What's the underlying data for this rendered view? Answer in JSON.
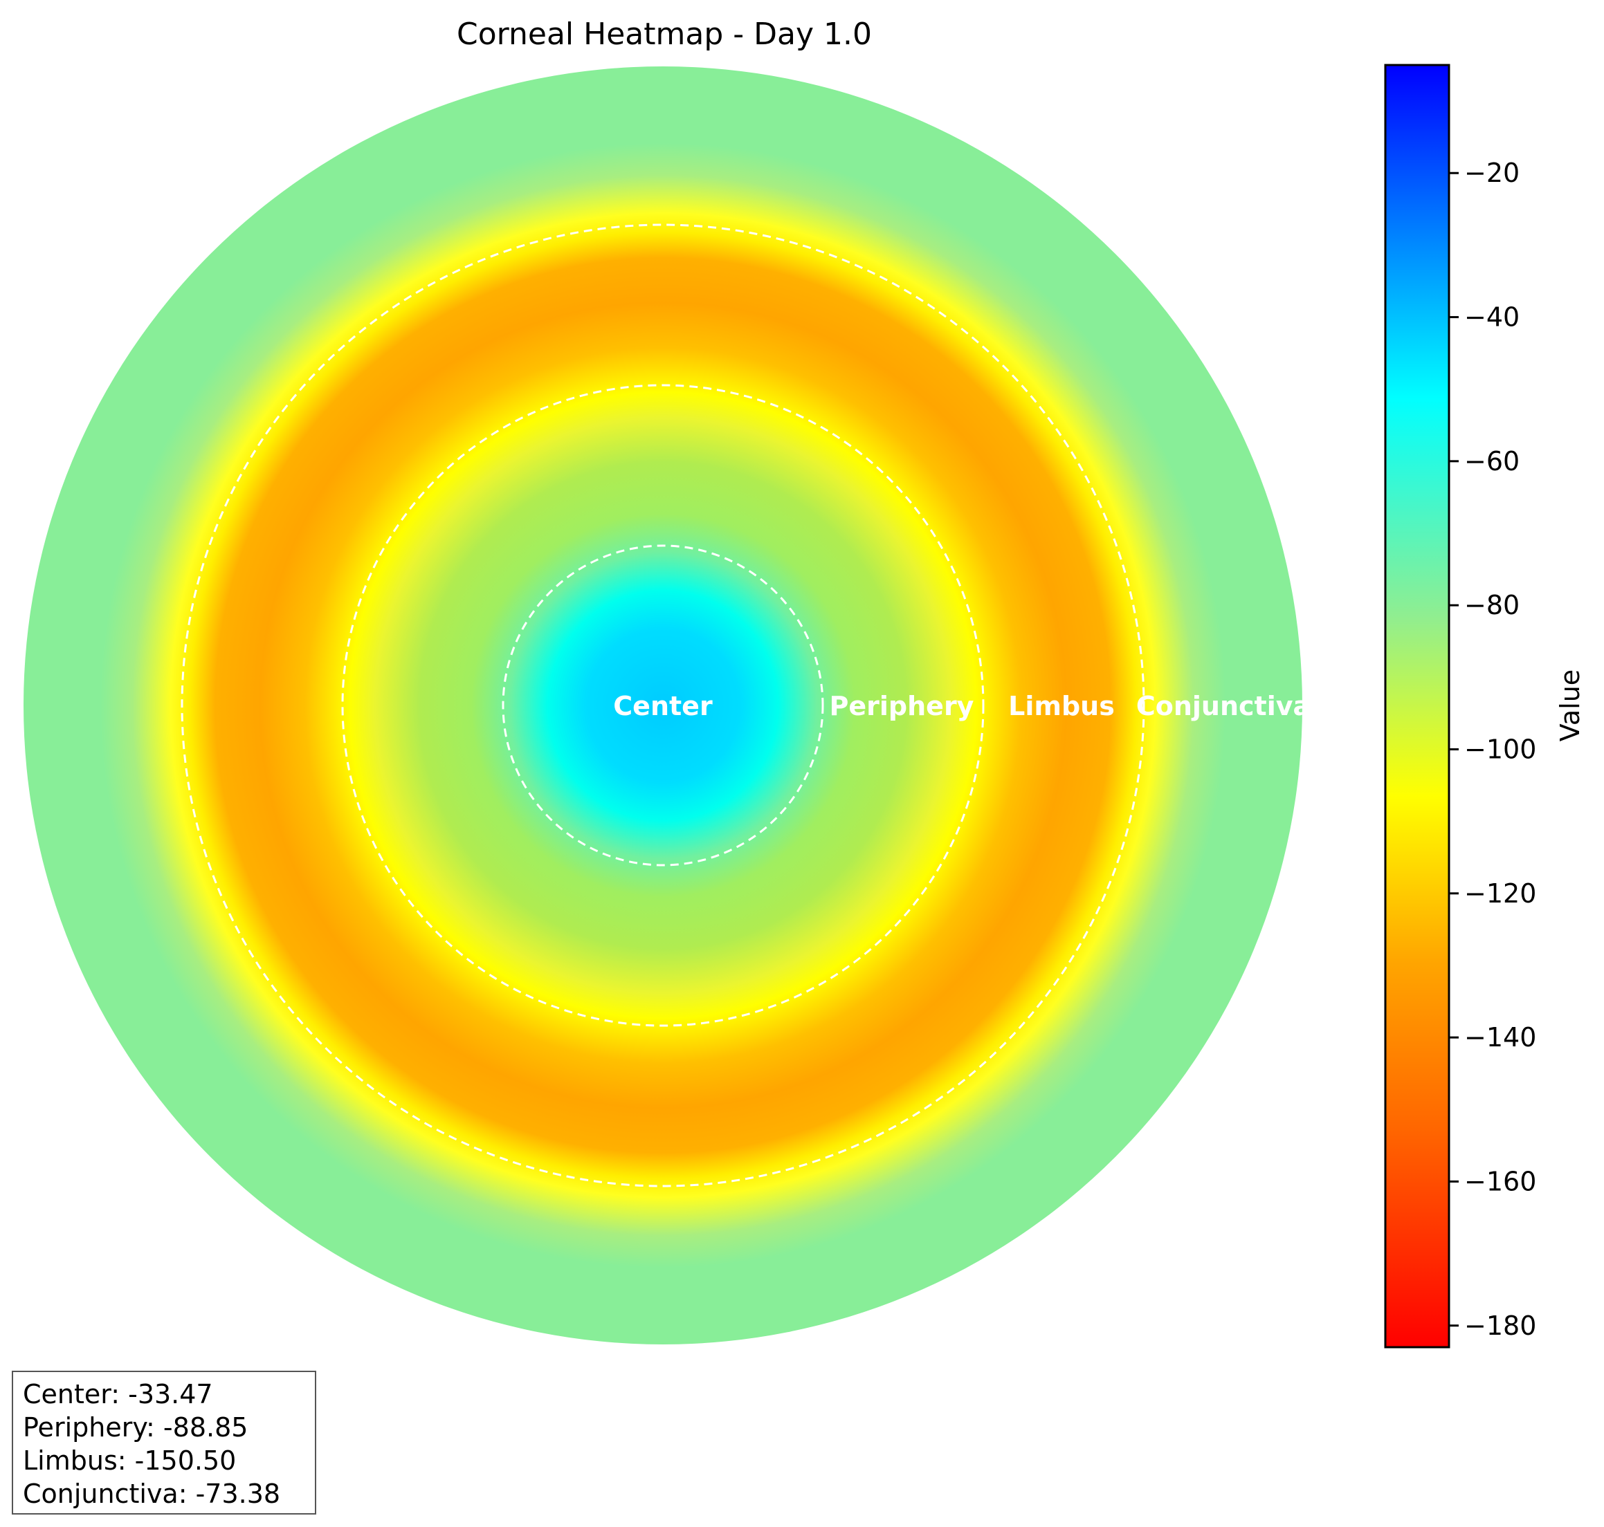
{
  "chart_data": {
    "type": "heatmap",
    "title": "Corneal Heatmap - Day 1.0",
    "regions": [
      {
        "name": "Center",
        "value": -33.47
      },
      {
        "name": "Periphery",
        "value": -88.85
      },
      {
        "name": "Limbus",
        "value": -150.5
      },
      {
        "name": "Conjunctiva",
        "value": -73.38
      }
    ],
    "colorbar": {
      "label": "Value",
      "range": [
        -183,
        -5
      ],
      "ticks": [
        -20,
        -40,
        -60,
        -80,
        -100,
        -120,
        -140,
        -160,
        -180
      ],
      "tick_labels": [
        "−20",
        "−40",
        "−60",
        "−80",
        "−100",
        "−120",
        "−140",
        "−160",
        "−180"
      ],
      "colors": [
        "#ff0000",
        "#ff6600",
        "#ffa500",
        "#ffff00",
        "#90ee90",
        "#00ffff",
        "#0000ff"
      ]
    }
  },
  "stats": [
    "Center: -33.47",
    "Periphery: -88.85",
    "Limbus: -150.50",
    "Conjunctiva: -73.38"
  ]
}
